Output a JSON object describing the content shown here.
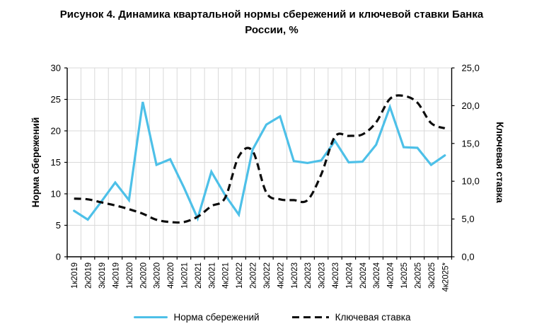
{
  "title": "Рисунок 4. Динамика квартальной нормы сбережений и ключевой ставки Банка России, %",
  "left_axis": {
    "title": "Норма сбережений",
    "tick_labels": [
      "0",
      "5",
      "10",
      "15",
      "20",
      "25",
      "30"
    ],
    "min": 0,
    "max": 30,
    "step": 5
  },
  "right_axis": {
    "title": "Ключевая ставка",
    "tick_labels": [
      "0,0",
      "5,0",
      "10,0",
      "15,0",
      "20,0",
      "25,0"
    ],
    "min": 0,
    "max": 25,
    "step": 5
  },
  "colors": {
    "savings_line": "#4dc0e8",
    "key_rate_line": "#0d0d0d",
    "gridline": "#d9d9d9",
    "axis": "#000000"
  },
  "legend": [
    {
      "label": "Норма сбережений",
      "color": "#4dc0e8",
      "style": "solid"
    },
    {
      "label": "Ключевая ставка",
      "color": "#0d0d0d",
      "style": "dashed"
    }
  ],
  "chart_data": {
    "type": "line",
    "categories": [
      "1к2019",
      "2к2019",
      "3к2019",
      "4к2019",
      "1к2020",
      "2к2020",
      "3к2020",
      "4к2020",
      "1к2021",
      "2к2021",
      "3к2021",
      "4к2021",
      "1к2022",
      "2к2022",
      "3к2022",
      "4к2022",
      "1к2023",
      "2к2023",
      "3к2023",
      "4к2023",
      "1к2024",
      "2к2024",
      "3к2024",
      "4к2024",
      "1к2025",
      "2к2025",
      "3к2025",
      "4к2025*"
    ],
    "series": [
      {
        "name": "Норма сбережений",
        "axis": "left",
        "color": "#4dc0e8",
        "style": "solid",
        "smooth": false,
        "values": [
          7.3,
          5.9,
          8.8,
          11.8,
          9.0,
          24.6,
          14.6,
          15.5,
          11.0,
          6.1,
          13.5,
          9.8,
          6.7,
          17.0,
          21.0,
          22.3,
          15.2,
          14.9,
          15.3,
          18.4,
          15.0,
          15.1,
          17.8,
          23.8,
          17.4,
          17.3,
          14.6,
          16.1
        ]
      },
      {
        "name": "Ключевая ставка",
        "axis": "right",
        "color": "#0d0d0d",
        "style": "dashed",
        "smooth": true,
        "values": [
          7.7,
          7.6,
          7.2,
          6.8,
          6.3,
          5.7,
          4.9,
          4.6,
          4.6,
          5.3,
          6.7,
          7.8,
          13.3,
          14.0,
          8.5,
          7.6,
          7.5,
          7.5,
          10.9,
          15.9,
          16.0,
          16.2,
          17.8,
          20.9,
          21.3,
          20.4,
          17.7,
          17.0
        ]
      }
    ],
    "left_ylim": [
      0,
      30
    ],
    "right_ylim": [
      0,
      25
    ],
    "grid": true,
    "legend_position": "bottom"
  }
}
